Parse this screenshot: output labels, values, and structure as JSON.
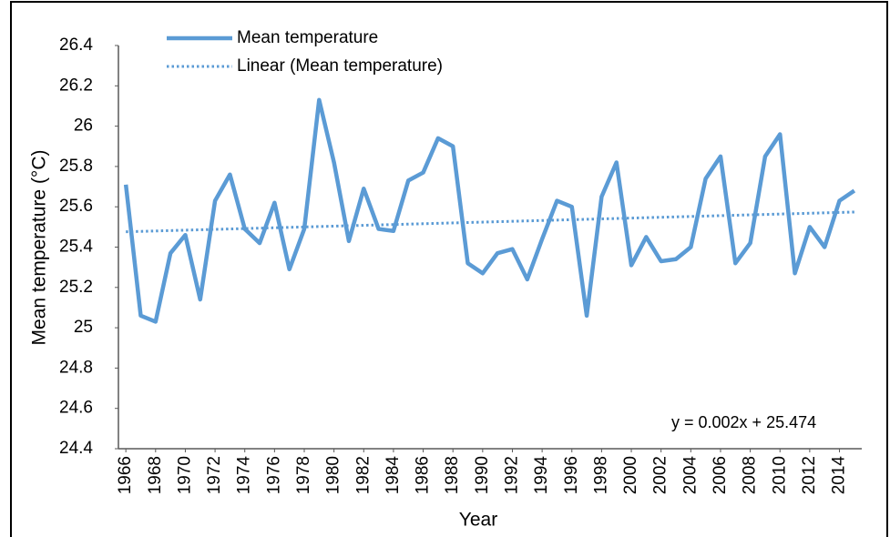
{
  "chart_data": {
    "type": "line",
    "x_label": "Year",
    "y_label": "Mean temperature  (°C)",
    "annotation": "y = 0.002x + 25.474",
    "x": [
      1966,
      1967,
      1968,
      1969,
      1970,
      1971,
      1972,
      1973,
      1974,
      1975,
      1976,
      1977,
      1978,
      1979,
      1980,
      1981,
      1982,
      1983,
      1984,
      1985,
      1986,
      1987,
      1988,
      1989,
      1990,
      1991,
      1992,
      1993,
      1994,
      1995,
      1996,
      1997,
      1998,
      1999,
      2000,
      2001,
      2002,
      2003,
      2004,
      2005,
      2006,
      2007,
      2008,
      2009,
      2010,
      2011,
      2012,
      2013,
      2014,
      2015
    ],
    "series": [
      {
        "name": "Mean temperature",
        "color": "#5b9bd5",
        "values": [
          25.71,
          25.06,
          25.03,
          25.37,
          25.46,
          25.14,
          25.63,
          25.76,
          25.49,
          25.42,
          25.62,
          25.29,
          25.49,
          26.13,
          25.82,
          25.43,
          25.69,
          25.49,
          25.48,
          25.73,
          25.77,
          25.94,
          25.9,
          25.32,
          25.27,
          25.37,
          25.39,
          25.24,
          25.44,
          25.63,
          25.6,
          25.06,
          25.65,
          25.82,
          25.31,
          25.45,
          25.33,
          25.34,
          25.4,
          25.74,
          25.85,
          25.32,
          25.42,
          25.85,
          25.96,
          25.27,
          25.5,
          25.4,
          25.63,
          25.68
        ]
      },
      {
        "name": "Linear (Mean temperature)",
        "color": "#5b9bd5",
        "dotted": true,
        "x": [
          1966,
          2015
        ],
        "values": [
          25.476,
          25.574
        ]
      }
    ],
    "xlim": [
      1965.5,
      2015.5
    ],
    "xticks": [
      1966,
      1968,
      1970,
      1972,
      1974,
      1976,
      1978,
      1980,
      1982,
      1984,
      1986,
      1988,
      1990,
      1992,
      1994,
      1996,
      1998,
      2000,
      2002,
      2004,
      2006,
      2008,
      2010,
      2012,
      2014
    ],
    "ylim": [
      24.4,
      26.4
    ],
    "yticks": [
      24.4,
      24.6,
      24.8,
      25,
      25.2,
      25.4,
      25.6,
      25.8,
      26,
      26.2,
      26.4
    ],
    "grid": false
  }
}
